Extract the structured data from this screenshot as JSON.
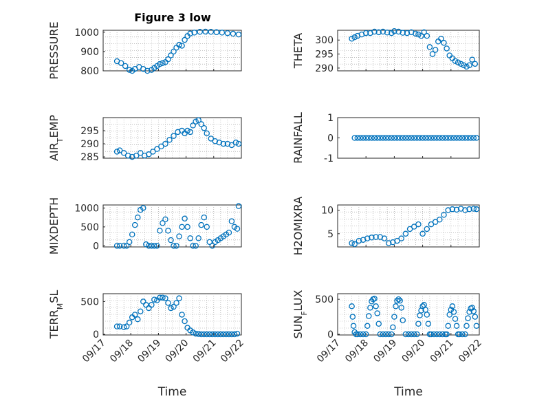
{
  "figure": {
    "title": "Figure 3 low",
    "marker_color": "#0072BD"
  },
  "chart_data": [
    {
      "type": "scatter",
      "title": "Figure 3 low",
      "ylabel": "PRESSURE",
      "xlim": [
        0,
        5
      ],
      "ylim": [
        800,
        1010
      ],
      "yticks": [
        800,
        900,
        1000
      ],
      "ytick_labels": [
        "800",
        "900",
        "1000"
      ],
      "xticks": [
        0,
        1,
        2,
        3,
        4,
        5
      ],
      "xtick_labels": [],
      "xlabel": "",
      "grid": true,
      "x": [
        0.5,
        0.65,
        0.8,
        0.95,
        1.05,
        1.15,
        1.3,
        1.45,
        1.6,
        1.75,
        1.85,
        1.95,
        2.05,
        2.15,
        2.25,
        2.35,
        2.45,
        2.55,
        2.65,
        2.75,
        2.85,
        2.95,
        3.05,
        3.15,
        3.3,
        3.5,
        3.7,
        3.9,
        4.1,
        4.3,
        4.5,
        4.7,
        4.9
      ],
      "y": [
        850,
        840,
        825,
        805,
        800,
        810,
        820,
        810,
        800,
        805,
        815,
        825,
        835,
        840,
        845,
        860,
        880,
        900,
        920,
        935,
        930,
        960,
        980,
        993,
        998,
        1002,
        1003,
        1002,
        1000,
        998,
        995,
        992,
        988
      ]
    },
    {
      "type": "scatter",
      "ylabel": "THETA",
      "xlim": [
        0,
        5
      ],
      "ylim": [
        289,
        303.5
      ],
      "yticks": [
        290,
        295,
        300
      ],
      "ytick_labels": [
        "290",
        "295",
        "300"
      ],
      "xticks": [
        0,
        1,
        2,
        3,
        4,
        5
      ],
      "xtick_labels": [],
      "xlabel": "",
      "grid": true,
      "x": [
        0.5,
        0.6,
        0.7,
        0.85,
        1.0,
        1.15,
        1.3,
        1.45,
        1.6,
        1.75,
        1.9,
        2.0,
        2.15,
        2.3,
        2.45,
        2.6,
        2.75,
        2.85,
        2.95,
        3.05,
        3.15,
        3.25,
        3.35,
        3.45,
        3.55,
        3.65,
        3.75,
        3.85,
        3.95,
        4.05,
        4.15,
        4.25,
        4.35,
        4.45,
        4.55,
        4.65,
        4.75,
        4.85
      ],
      "y": [
        300.5,
        301,
        301.5,
        302,
        302.5,
        302.5,
        303,
        302.8,
        303,
        302.7,
        302.5,
        303.2,
        303,
        302.6,
        302.5,
        302.8,
        302.3,
        302,
        301.5,
        302.8,
        301.5,
        297.5,
        295,
        296.5,
        299.5,
        300.5,
        299,
        297,
        294.5,
        293.5,
        292.5,
        292,
        291.5,
        291,
        290.5,
        291,
        293,
        291.5
      ]
    },
    {
      "type": "scatter",
      "ylabel": "AIR_TEMP",
      "xlim": [
        0,
        5
      ],
      "ylim": [
        284.5,
        300
      ],
      "yticks": [
        285,
        290,
        295
      ],
      "ytick_labels": [
        "285",
        "290",
        "295"
      ],
      "xticks": [
        0,
        1,
        2,
        3,
        4,
        5
      ],
      "xtick_labels": [],
      "xlabel": "",
      "grid": true,
      "x": [
        0.5,
        0.6,
        0.75,
        0.9,
        1.05,
        1.2,
        1.35,
        1.5,
        1.65,
        1.8,
        1.95,
        2.1,
        2.25,
        2.4,
        2.55,
        2.7,
        2.85,
        2.95,
        3.05,
        3.15,
        3.25,
        3.35,
        3.45,
        3.55,
        3.65,
        3.75,
        3.9,
        4.05,
        4.2,
        4.35,
        4.5,
        4.65,
        4.8,
        4.9
      ],
      "y": [
        287,
        287.5,
        286.5,
        285.5,
        285,
        285.5,
        286.5,
        285.5,
        286,
        287,
        288,
        289,
        290,
        291.5,
        293,
        294.5,
        295,
        294,
        295,
        294.5,
        297,
        298.5,
        299,
        297.5,
        296,
        294,
        292,
        291,
        290.5,
        290,
        290,
        289.5,
        290.5,
        290
      ]
    },
    {
      "type": "scatter",
      "ylabel": "RAINFALL",
      "xlim": [
        0,
        5
      ],
      "ylim": [
        -1,
        1
      ],
      "yticks": [
        -1,
        0,
        1
      ],
      "ytick_labels": [
        "-1",
        "0",
        "1"
      ],
      "xticks": [
        0,
        1,
        2,
        3,
        4,
        5
      ],
      "xtick_labels": [],
      "xlabel": "",
      "grid": false,
      "x": [
        0.6,
        0.7,
        0.8,
        0.9,
        1.0,
        1.1,
        1.2,
        1.3,
        1.4,
        1.5,
        1.6,
        1.7,
        1.8,
        1.9,
        2.0,
        2.1,
        2.2,
        2.3,
        2.4,
        2.5,
        2.6,
        2.7,
        2.8,
        2.9,
        3.0,
        3.1,
        3.2,
        3.3,
        3.4,
        3.5,
        3.6,
        3.7,
        3.8,
        3.9,
        4.0,
        4.1,
        4.2,
        4.3,
        4.4,
        4.5,
        4.6,
        4.7,
        4.8,
        4.9
      ],
      "y": [
        0,
        0,
        0,
        0,
        0,
        0,
        0,
        0,
        0,
        0,
        0,
        0,
        0,
        0,
        0,
        0,
        0,
        0,
        0,
        0,
        0,
        0,
        0,
        0,
        0,
        0,
        0,
        0,
        0,
        0,
        0,
        0,
        0,
        0,
        0,
        0,
        0,
        0,
        0,
        0,
        0,
        0,
        0,
        0
      ]
    },
    {
      "type": "scatter",
      "ylabel": "MIXDEPTH",
      "xlim": [
        0,
        5
      ],
      "ylim": [
        -30,
        1080
      ],
      "yticks": [
        0,
        500,
        1000
      ],
      "ytick_labels": [
        "0",
        "500",
        "1000"
      ],
      "xticks": [
        0,
        1,
        2,
        3,
        4,
        5
      ],
      "xtick_labels": [],
      "xlabel": "",
      "grid": true,
      "x": [
        0.5,
        0.6,
        0.75,
        0.85,
        0.95,
        1.05,
        1.15,
        1.25,
        1.35,
        1.45,
        1.55,
        1.65,
        1.75,
        1.85,
        1.95,
        2.05,
        2.15,
        2.25,
        2.35,
        2.45,
        2.55,
        2.65,
        2.75,
        2.85,
        2.95,
        3.05,
        3.15,
        3.25,
        3.35,
        3.45,
        3.55,
        3.65,
        3.75,
        3.85,
        3.95,
        4.05,
        4.15,
        4.25,
        4.35,
        4.45,
        4.55,
        4.65,
        4.75,
        4.85,
        4.9
      ],
      "y": [
        0,
        0,
        0,
        0,
        100,
        300,
        550,
        750,
        950,
        1000,
        40,
        0,
        0,
        0,
        0,
        400,
        600,
        700,
        400,
        150,
        0,
        0,
        250,
        500,
        720,
        500,
        200,
        0,
        0,
        200,
        550,
        750,
        500,
        100,
        0,
        100,
        150,
        200,
        250,
        300,
        350,
        650,
        500,
        450,
        1050
      ]
    },
    {
      "type": "scatter",
      "ylabel": "H2OMIXRA",
      "xlim": [
        0,
        5
      ],
      "ylim": [
        2.2,
        11.1
      ],
      "yticks": [
        5,
        10
      ],
      "ytick_labels": [
        "5",
        "10"
      ],
      "xticks": [
        0,
        1,
        2,
        3,
        4,
        5
      ],
      "xtick_labels": [],
      "xlabel": "",
      "grid": true,
      "x": [
        0.5,
        0.6,
        0.75,
        0.9,
        1.05,
        1.2,
        1.35,
        1.5,
        1.65,
        1.8,
        1.95,
        2.1,
        2.25,
        2.4,
        2.55,
        2.7,
        2.85,
        3.0,
        3.15,
        3.3,
        3.45,
        3.6,
        3.75,
        3.9,
        4.05,
        4.2,
        4.35,
        4.5,
        4.65,
        4.8,
        4.9
      ],
      "y": [
        3,
        2.8,
        3.5,
        3.7,
        4,
        4.2,
        4.3,
        4.3,
        4,
        3,
        3.2,
        3.5,
        4,
        5,
        6,
        6.5,
        7,
        5,
        6,
        7,
        7.5,
        8,
        9,
        10,
        10.2,
        10.1,
        10.3,
        10,
        10.2,
        10.3,
        10.2
      ]
    },
    {
      "type": "scatter",
      "ylabel": "TERR_MSL",
      "xlim": [
        0,
        5
      ],
      "ylim": [
        -10,
        620
      ],
      "yticks": [
        0,
        500
      ],
      "ytick_labels": [
        "0",
        "500"
      ],
      "xticks": [
        0,
        1,
        2,
        3,
        4,
        5
      ],
      "xtick_labels": [
        "09/17",
        "09/18",
        "09/19",
        "09/20",
        "09/21",
        "09/22"
      ],
      "xlabel": "Time",
      "grid": true,
      "x": [
        0.5,
        0.6,
        0.75,
        0.85,
        0.95,
        1.05,
        1.15,
        1.25,
        1.35,
        1.45,
        1.55,
        1.65,
        1.75,
        1.85,
        1.95,
        2.05,
        2.15,
        2.25,
        2.35,
        2.45,
        2.55,
        2.65,
        2.75,
        2.85,
        2.95,
        3.05,
        3.15,
        3.25,
        3.35,
        3.45,
        3.55,
        3.65,
        3.75,
        3.85,
        3.95,
        4.05,
        4.15,
        4.25,
        4.35,
        4.45,
        4.55,
        4.65,
        4.75,
        4.85
      ],
      "y": [
        120,
        120,
        110,
        120,
        180,
        260,
        300,
        230,
        350,
        500,
        450,
        400,
        450,
        530,
        520,
        560,
        560,
        550,
        480,
        400,
        420,
        480,
        550,
        300,
        200,
        100,
        60,
        30,
        10,
        5,
        0,
        0,
        0,
        0,
        0,
        0,
        0,
        0,
        0,
        0,
        0,
        0,
        0,
        10
      ]
    },
    {
      "type": "scatter",
      "ylabel": "SUN_FLUX",
      "xlim": [
        0,
        5
      ],
      "ylim": [
        -10,
        580
      ],
      "yticks": [
        0,
        500
      ],
      "ytick_labels": [
        "0",
        "500"
      ],
      "xticks": [
        0,
        1,
        2,
        3,
        4,
        5
      ],
      "xtick_labels": [
        "09/17",
        "09/18",
        "09/19",
        "09/20",
        "09/21",
        "09/22"
      ],
      "xlabel": "Time",
      "grid": true,
      "x": [
        0.5,
        0.53,
        0.56,
        0.6,
        0.65,
        0.7,
        0.8,
        0.9,
        1.0,
        1.05,
        1.1,
        1.15,
        1.2,
        1.25,
        1.3,
        1.35,
        1.4,
        1.45,
        1.5,
        1.6,
        1.7,
        1.8,
        1.9,
        1.95,
        2.0,
        2.05,
        2.1,
        2.15,
        2.2,
        2.25,
        2.3,
        2.4,
        2.5,
        2.6,
        2.7,
        2.8,
        2.85,
        2.9,
        2.95,
        3.0,
        3.05,
        3.1,
        3.15,
        3.2,
        3.25,
        3.3,
        3.4,
        3.5,
        3.6,
        3.7,
        3.8,
        3.85,
        3.9,
        3.95,
        4.0,
        4.05,
        4.1,
        4.15,
        4.2,
        4.25,
        4.3,
        4.4,
        4.5,
        4.55,
        4.6,
        4.65,
        4.7,
        4.75,
        4.8,
        4.85,
        4.9
      ],
      "y": [
        400,
        250,
        120,
        30,
        0,
        0,
        0,
        0,
        0,
        120,
        260,
        380,
        470,
        500,
        510,
        400,
        300,
        150,
        0,
        0,
        0,
        0,
        0,
        100,
        250,
        400,
        480,
        500,
        480,
        380,
        200,
        0,
        0,
        0,
        0,
        0,
        150,
        270,
        340,
        400,
        420,
        350,
        280,
        150,
        0,
        0,
        0,
        0,
        0,
        0,
        0,
        0,
        120,
        280,
        350,
        400,
        320,
        220,
        120,
        0,
        0,
        0,
        0,
        120,
        230,
        320,
        370,
        380,
        330,
        250,
        120
      ]
    }
  ]
}
